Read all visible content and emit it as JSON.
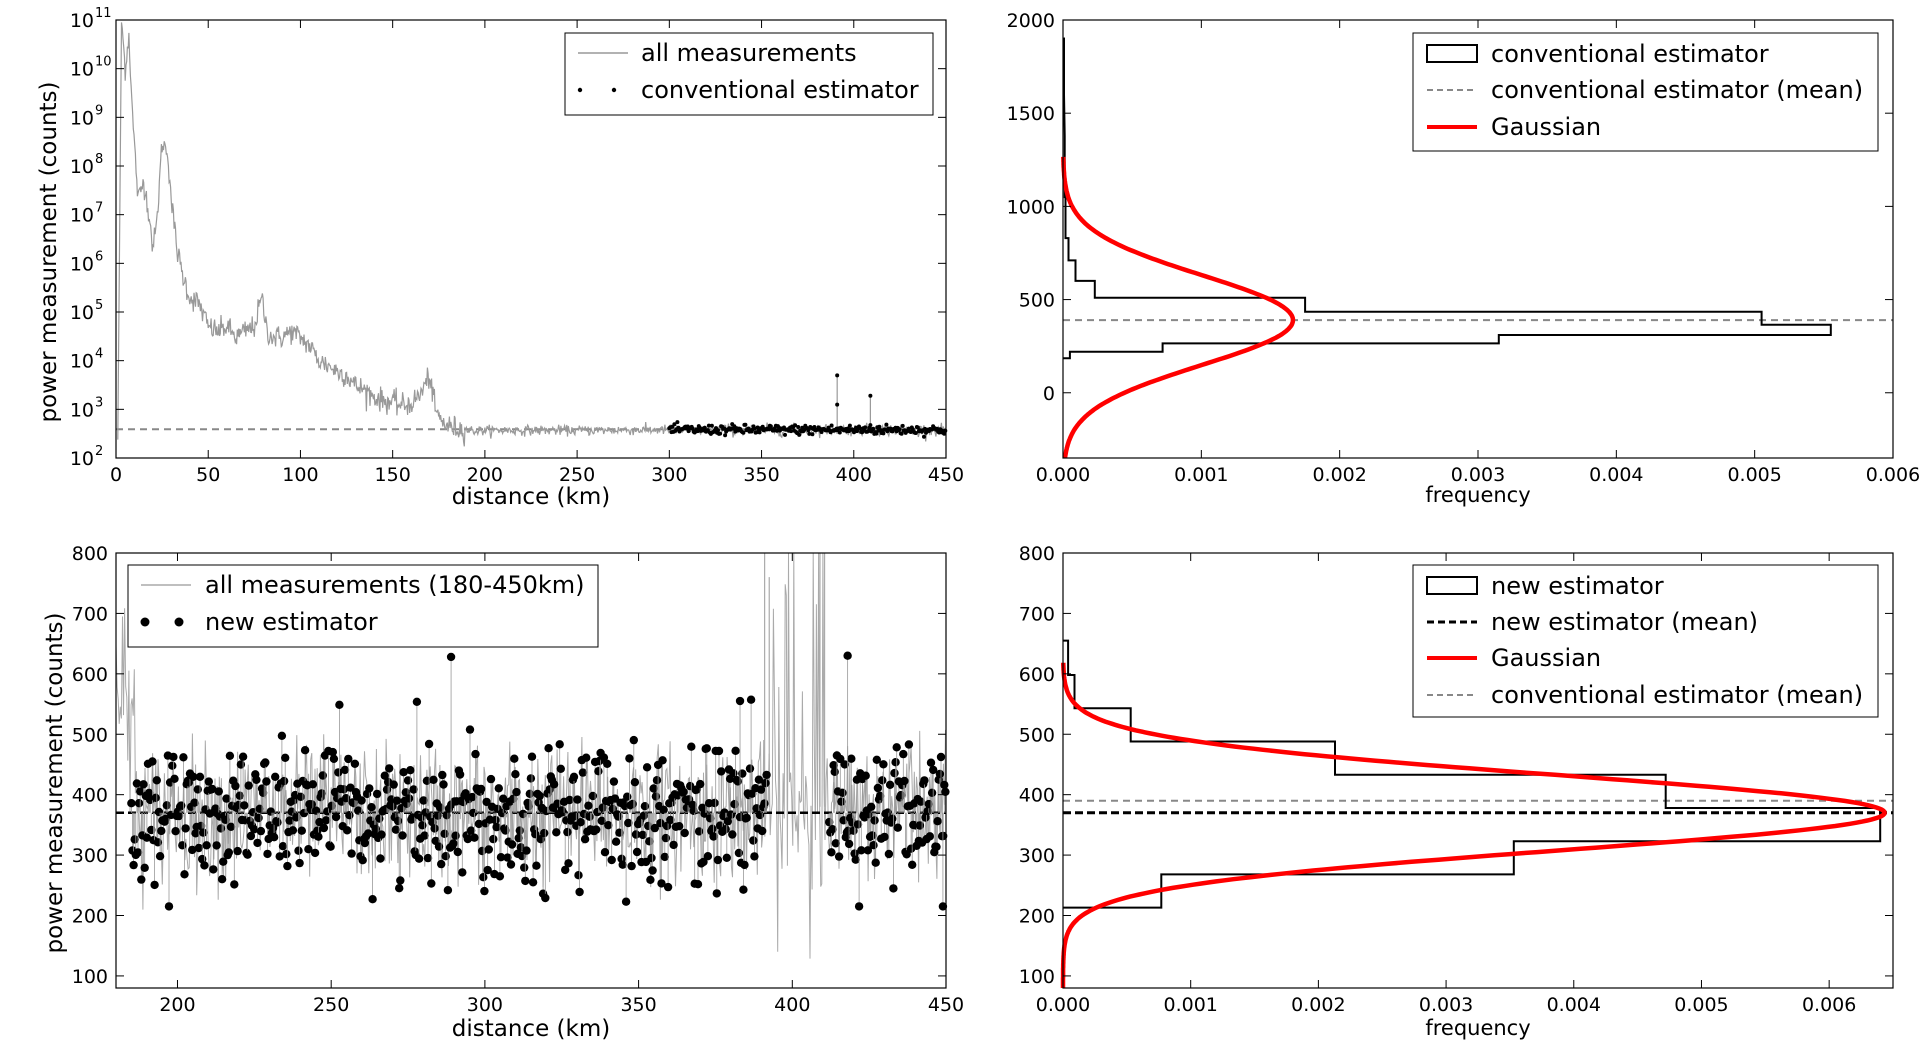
{
  "chart_data": [
    {
      "id": "top-left",
      "type": "line",
      "yscale": "log",
      "xlabel": "distance (km)",
      "ylabel": "power measurement (counts)",
      "xlim": [
        0,
        450
      ],
      "ylim_exponents": [
        2,
        11
      ],
      "xticks": [
        0,
        50,
        100,
        150,
        200,
        250,
        300,
        350,
        400,
        450
      ],
      "yticks": [
        {
          "base": "10",
          "exp": "2"
        },
        {
          "base": "10",
          "exp": "3"
        },
        {
          "base": "10",
          "exp": "4"
        },
        {
          "base": "10",
          "exp": "5"
        },
        {
          "base": "10",
          "exp": "6"
        },
        {
          "base": "10",
          "exp": "7"
        },
        {
          "base": "10",
          "exp": "8"
        },
        {
          "base": "10",
          "exp": "9"
        },
        {
          "base": "10",
          "exp": "10"
        },
        {
          "base": "10",
          "exp": "11"
        }
      ],
      "legend": {
        "position": "top-right",
        "entries": [
          "all measurements",
          "conventional estimator"
        ]
      },
      "series": [
        {
          "name": "all measurements",
          "style": "gray-line",
          "x": [
            1,
            3,
            5,
            7,
            9,
            12,
            15,
            18,
            20,
            22,
            25,
            28,
            30,
            33,
            36,
            40,
            45,
            50,
            55,
            60,
            65,
            70,
            75,
            79,
            82,
            85,
            90,
            95,
            100,
            105,
            110,
            115,
            120,
            125,
            130,
            135,
            140,
            145,
            150,
            155,
            160,
            165,
            170,
            173,
            176,
            180,
            185,
            190,
            195,
            200,
            250,
            300
          ],
          "y": [
            260.0,
            100000000000.0,
            10000000000.0,
            50000000000.0,
            1000000000.0,
            20000000.0,
            50000000.0,
            10000000.0,
            2000000.0,
            6000000.0,
            300000000.0,
            200000000.0,
            20000000.0,
            2000000.0,
            600000.0,
            200000.0,
            150000.0,
            50000.0,
            40000.0,
            50000.0,
            30000.0,
            40000.0,
            50000.0,
            200000.0,
            40000.0,
            30000.0,
            30000.0,
            40000.0,
            30000.0,
            20000.0,
            10000.0,
            8000.0,
            6000.0,
            5000.0,
            3000.0,
            2500.0,
            1800.0,
            1500.0,
            1400.0,
            1200.0,
            1300.0,
            2000.0,
            5000.0,
            1000.0,
            600.0,
            450.0,
            400.0,
            380.0,
            360.0,
            370.0,
            370.0,
            380.0
          ]
        },
        {
          "name": "conventional estimator",
          "style": "black-dots",
          "x_range": [
            300,
            450
          ],
          "mean": 380,
          "spikes": [
            {
              "x": 391,
              "y": 5000
            },
            {
              "x": 409,
              "y": 1900
            }
          ]
        }
      ],
      "reference_line": {
        "y": 390,
        "style": "gray-dashed"
      }
    },
    {
      "id": "top-right",
      "type": "histogram",
      "orientation": "horizontal",
      "xlabel": "frequency",
      "ylabel": "",
      "xlim": [
        0,
        0.006
      ],
      "ylim": [
        -350,
        2000
      ],
      "xticks": [
        "0.000",
        "0.001",
        "0.002",
        "0.003",
        "0.004",
        "0.005",
        "0.006"
      ],
      "yticks": [
        0,
        500,
        1000,
        1500,
        2000
      ],
      "legend": {
        "position": "top-right",
        "entries": [
          "conventional estimator",
          "conventional estimator (mean)",
          "Gaussian"
        ]
      },
      "histogram": {
        "name": "conventional estimator",
        "bins": [
          {
            "y0": 1600,
            "y1": 1900,
            "freq": 7e-06
          },
          {
            "y0": 1050,
            "y1": 1380,
            "freq": 1.2e-05
          },
          {
            "y0": 830,
            "y1": 1050,
            "freq": 1.8e-05
          },
          {
            "y0": 710,
            "y1": 830,
            "freq": 4e-05
          },
          {
            "y0": 600,
            "y1": 710,
            "freq": 9e-05
          },
          {
            "y0": 510,
            "y1": 600,
            "freq": 0.00023
          },
          {
            "y0": 435,
            "y1": 510,
            "freq": 0.00175
          },
          {
            "y0": 365,
            "y1": 435,
            "freq": 0.00505
          },
          {
            "y0": 310,
            "y1": 365,
            "freq": 0.00555
          },
          {
            "y0": 265,
            "y1": 310,
            "freq": 0.00315
          },
          {
            "y0": 220,
            "y1": 265,
            "freq": 0.00072
          },
          {
            "y0": 185,
            "y1": 220,
            "freq": 5e-05
          }
        ]
      },
      "mean_line": {
        "name": "conventional estimator (mean)",
        "y": 390,
        "style": "gray-dashed"
      },
      "gaussian": {
        "name": "Gaussian",
        "mu": 390,
        "sigma": 240,
        "color": "#ff0000"
      }
    },
    {
      "id": "bottom-left",
      "type": "scatter",
      "xlabel": "distance (km)",
      "ylabel": "power measurement (counts)",
      "xlim": [
        180,
        450
      ],
      "ylim": [
        80,
        800
      ],
      "xticks": [
        200,
        250,
        300,
        350,
        400,
        450
      ],
      "yticks": [
        100,
        200,
        300,
        400,
        500,
        600,
        700,
        800
      ],
      "legend": {
        "position": "top-left",
        "entries": [
          "all measurements (180-450km)",
          "new estimator"
        ]
      },
      "series": [
        {
          "name": "all measurements (180-450km)",
          "style": "gray-line",
          "x_range": [
            180,
            450
          ],
          "mean": 370
        },
        {
          "name": "new estimator",
          "style": "black-dots",
          "segments": [
            [
              185,
              392
            ],
            [
              412,
              450
            ]
          ],
          "mean": 370,
          "notable_points": [
            {
              "x": 289,
              "y": 628
            },
            {
              "x": 418,
              "y": 630
            },
            {
              "x": 383,
              "y": 555
            },
            {
              "x": 449,
              "y": 215
            }
          ]
        }
      ],
      "reference_line": {
        "y": 370,
        "style": "black-dashed"
      }
    },
    {
      "id": "bottom-right",
      "type": "histogram",
      "orientation": "horizontal",
      "xlabel": "frequency",
      "ylabel": "",
      "xlim": [
        0,
        0.0065
      ],
      "ylim": [
        80,
        800
      ],
      "xticks": [
        "0.000",
        "0.001",
        "0.002",
        "0.003",
        "0.004",
        "0.005",
        "0.006"
      ],
      "xtick_values": [
        0,
        0.001,
        0.002,
        0.003,
        0.004,
        0.005,
        0.006
      ],
      "yticks": [
        100,
        200,
        300,
        400,
        500,
        600,
        700,
        800
      ],
      "legend": {
        "position": "top-right",
        "entries": [
          "new estimator",
          "new estimator (mean)",
          "Gaussian",
          "conventional estimator (mean)"
        ]
      },
      "histogram": {
        "name": "new estimator",
        "bins": [
          {
            "y0": 598,
            "y1": 655,
            "freq": 4e-05
          },
          {
            "y0": 543,
            "y1": 598,
            "freq": 9e-05
          },
          {
            "y0": 488,
            "y1": 543,
            "freq": 0.00053
          },
          {
            "y0": 433,
            "y1": 488,
            "freq": 0.00213
          },
          {
            "y0": 378,
            "y1": 433,
            "freq": 0.00472
          },
          {
            "y0": 323,
            "y1": 378,
            "freq": 0.0064
          },
          {
            "y0": 268,
            "y1": 323,
            "freq": 0.00353
          },
          {
            "y0": 213,
            "y1": 268,
            "freq": 0.00077
          }
        ]
      },
      "mean_line": {
        "name": "new estimator (mean)",
        "y": 370,
        "style": "black-dashed"
      },
      "conventional_mean_line": {
        "name": "conventional estimator (mean)",
        "y": 390,
        "style": "gray-dashed"
      },
      "gaussian": {
        "name": "Gaussian",
        "mu": 370,
        "sigma": 62,
        "color": "#ff0000"
      }
    }
  ]
}
